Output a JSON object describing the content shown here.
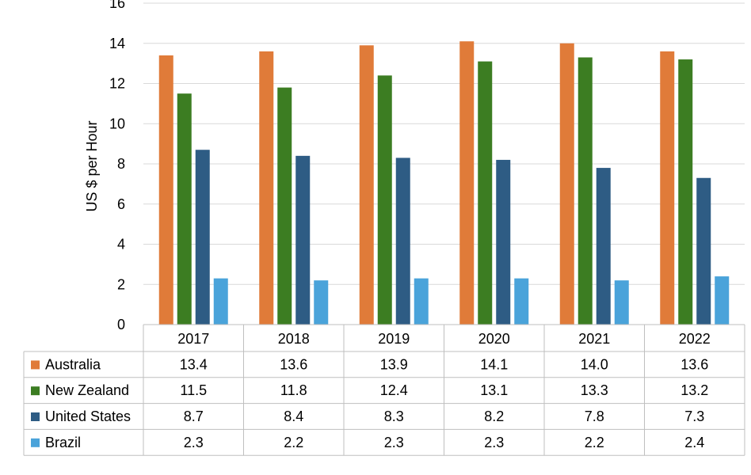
{
  "chart_data": {
    "type": "bar",
    "ylabel": "US $ per Hour",
    "ylim": [
      0,
      16
    ],
    "yticks": [
      0,
      2,
      4,
      6,
      8,
      10,
      12,
      14,
      16
    ],
    "grid": true,
    "categories": [
      "2017",
      "2018",
      "2019",
      "2020",
      "2021",
      "2022"
    ],
    "series": [
      {
        "name": "Australia",
        "color": "#E07B39",
        "values": [
          13.4,
          13.6,
          13.9,
          14.1,
          14.0,
          13.6
        ]
      },
      {
        "name": "New Zealand",
        "color": "#3C7D22",
        "values": [
          11.5,
          11.8,
          12.4,
          13.1,
          13.3,
          13.2
        ]
      },
      {
        "name": "United States",
        "color": "#2E5C84",
        "values": [
          8.7,
          8.4,
          8.3,
          8.2,
          7.8,
          7.3
        ]
      },
      {
        "name": "Brazil",
        "color": "#4AA3DA",
        "values": [
          2.3,
          2.2,
          2.3,
          2.3,
          2.2,
          2.4
        ]
      }
    ],
    "data_table": true
  }
}
